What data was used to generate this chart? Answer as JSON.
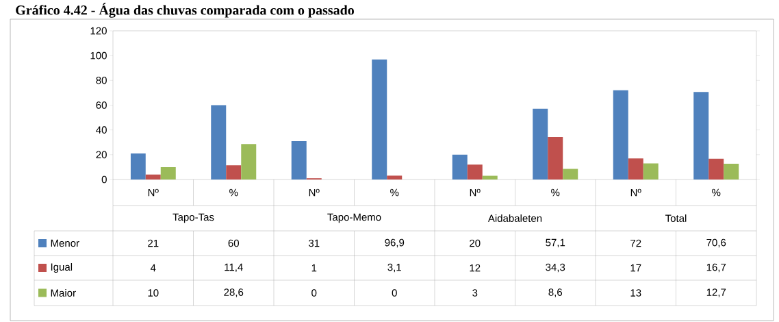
{
  "chart_data": {
    "type": "bar",
    "title": "Gráfico 4.42 - Água das chuvas comparada com o passado",
    "categories": [
      "Nº",
      "%",
      "Nº",
      "%",
      "Nº",
      "%",
      "Nº",
      "%"
    ],
    "annotations": [
      "Tapo-Tas",
      "Tapo-Memo",
      "Aidabaleten",
      "Total"
    ],
    "series": [
      {
        "name": "Menor",
        "color": "#4f81bd",
        "values": [
          21,
          60,
          31,
          96.9,
          20,
          57.1,
          72,
          70.6
        ],
        "value_labels": [
          "21",
          "60",
          "31",
          "96,9",
          "20",
          "57,1",
          "72",
          "70,6"
        ]
      },
      {
        "name": "Igual",
        "color": "#c0504d",
        "values": [
          4,
          11.4,
          1,
          3.1,
          12,
          34.3,
          17,
          16.7
        ],
        "value_labels": [
          "4",
          "11,4",
          "1",
          "3,1",
          "12",
          "34,3",
          "17",
          "16,7"
        ]
      },
      {
        "name": "Maior",
        "color": "#9bbb59",
        "values": [
          10,
          28.6,
          0,
          0,
          3,
          8.6,
          13,
          12.7
        ],
        "value_labels": [
          "10",
          "28,6",
          "0",
          "0",
          "3",
          "8,6",
          "13",
          "12,7"
        ]
      }
    ],
    "ylim": [
      0,
      120
    ],
    "yticks": [
      0,
      20,
      40,
      60,
      80,
      100,
      120
    ],
    "legend": "bottom left"
  }
}
